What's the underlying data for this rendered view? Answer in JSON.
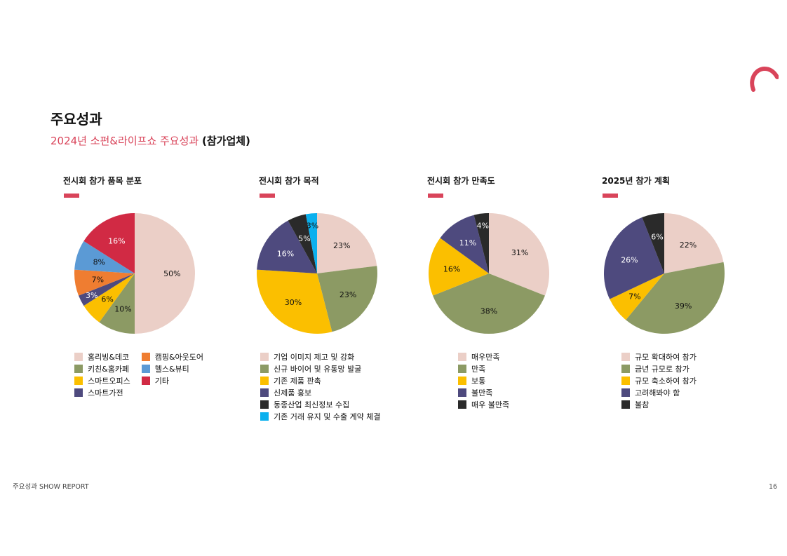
{
  "header": {
    "title": "주요성과",
    "subtitle_accent": "2024년 소펀&라이프쇼 주요성과",
    "subtitle_dark": "(참가업체)"
  },
  "footer": {
    "left": "주요성과 SHOW REPORT",
    "page": "16"
  },
  "colors": {
    "accent": "#d9445a"
  },
  "chart_data": [
    {
      "type": "pie",
      "title": "전시회 참가 품목 분포",
      "slices": [
        {
          "label": "홈리빙&데코",
          "value": 50,
          "text": "50%",
          "color": "#ebcfc7"
        },
        {
          "label": "키친&홈카페",
          "value": 10,
          "text": "10%",
          "color": "#8c9a64"
        },
        {
          "label": "스마트오피스",
          "value": 6,
          "text": "6%",
          "color": "#fbbf00"
        },
        {
          "label": "스마트가전",
          "value": 3,
          "text": "3%",
          "color": "#4e4a7e"
        },
        {
          "label": "캠핑&아웃도어",
          "value": 7,
          "text": "7%",
          "color": "#ef7d31"
        },
        {
          "label": "헬스&뷰티",
          "value": 8,
          "text": "8%",
          "color": "#5b9ad5"
        },
        {
          "label": "기타",
          "value": 16,
          "text": "16%",
          "color": "#d12a44"
        }
      ],
      "legend_layout": "two-columns"
    },
    {
      "type": "pie",
      "title": "전시회 참가 목적",
      "slices": [
        {
          "label": "기업 이미지 제고 및 강화",
          "value": 23,
          "text": "23%",
          "color": "#ebcfc7"
        },
        {
          "label": "신규 바이어 및 유통망 발굴",
          "value": 23,
          "text": "23%",
          "color": "#8c9a64"
        },
        {
          "label": "기존 제품 판촉",
          "value": 30,
          "text": "30%",
          "color": "#fbbf00"
        },
        {
          "label": "신제품 홍보",
          "value": 16,
          "text": "16%",
          "color": "#4e4a7e"
        },
        {
          "label": "동종산업 최신정보 수집",
          "value": 5,
          "text": "5%",
          "color": "#2a2a2a"
        },
        {
          "label": "기존 거래 유지 및 수출 계약 체결",
          "value": 3,
          "text": "3%",
          "color": "#0ab0ee"
        }
      ],
      "legend_layout": "one-column"
    },
    {
      "type": "pie",
      "title": "전시회 참가 만족도",
      "slices": [
        {
          "label": "매우만족",
          "value": 31,
          "text": "31%",
          "color": "#ebcfc7"
        },
        {
          "label": "만족",
          "value": 38,
          "text": "38%",
          "color": "#8c9a64"
        },
        {
          "label": "보통",
          "value": 16,
          "text": "16%",
          "color": "#fbbf00"
        },
        {
          "label": "불만족",
          "value": 11,
          "text": "11%",
          "color": "#4e4a7e"
        },
        {
          "label": "매우 불만족",
          "value": 4,
          "text": "4%",
          "color": "#2a2a2a"
        }
      ],
      "legend_layout": "one-column"
    },
    {
      "type": "pie",
      "title": "2025년 참가 계획",
      "slices": [
        {
          "label": "규모 확대하여 참가",
          "value": 22,
          "text": "22%",
          "color": "#ebcfc7"
        },
        {
          "label": "금년 규모로 참가",
          "value": 39,
          "text": "39%",
          "color": "#8c9a64"
        },
        {
          "label": "규모 축소하여 참가",
          "value": 7,
          "text": "7%",
          "color": "#fbbf00"
        },
        {
          "label": "고려해봐야 함",
          "value": 26,
          "text": "26%",
          "color": "#4e4a7e"
        },
        {
          "label": "불참",
          "value": 6,
          "text": "6%",
          "color": "#2a2a2a"
        }
      ],
      "legend_layout": "one-column"
    }
  ]
}
